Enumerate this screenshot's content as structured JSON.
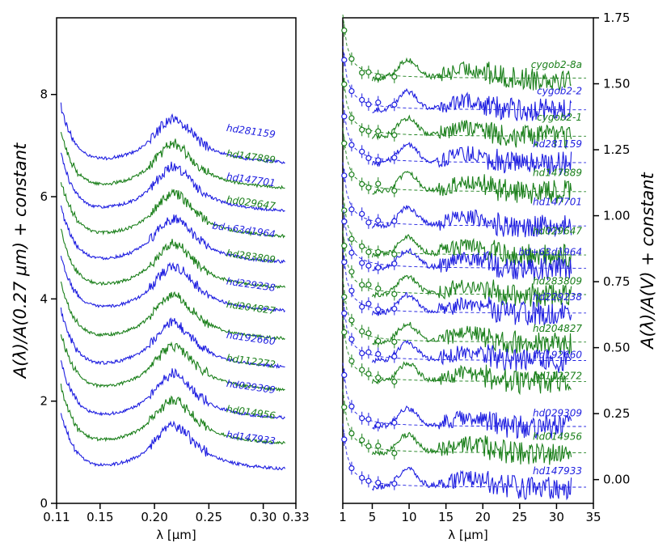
{
  "colors": {
    "blue": "#1f1fe0",
    "green": "#1a7f1a",
    "axis": "#000000"
  },
  "chart_data": [
    {
      "type": "line",
      "panel": "left",
      "xlabel": "λ [μm]",
      "ylabel": "A(λ)/A(0.27 μm) + constant",
      "xlim": [
        0.11,
        0.33
      ],
      "ylim": [
        0,
        9.5
      ],
      "xticks": [
        "0.11",
        "0.15",
        "0.20",
        "0.25",
        "0.30",
        "0.33"
      ],
      "xtick_values": [
        0.11,
        0.15,
        0.2,
        0.25,
        0.3,
        0.33
      ],
      "yticks": [
        "0",
        "2",
        "4",
        "6",
        "8"
      ],
      "ytick_values": [
        0,
        2,
        4,
        6,
        8
      ],
      "series": [
        {
          "name": "hd281159",
          "color": "blue",
          "offset": 6.85,
          "label_y": 7.15
        },
        {
          "name": "hd147889",
          "color": "green",
          "offset": 6.35,
          "label_y": 6.65
        },
        {
          "name": "hd147701",
          "color": "blue",
          "offset": 5.9,
          "label_y": 6.2
        },
        {
          "name": "hd029647",
          "color": "green",
          "offset": 5.4,
          "label_y": 5.75
        },
        {
          "name": "bd+63d1964",
          "color": "blue",
          "offset": 4.9,
          "label_y": 5.2
        },
        {
          "name": "hd283809",
          "color": "green",
          "offset": 4.4,
          "label_y": 4.7
        },
        {
          "name": "hd229238",
          "color": "blue",
          "offset": 3.95,
          "label_y": 4.15
        },
        {
          "name": "hd204827",
          "color": "green",
          "offset": 3.4,
          "label_y": 3.7
        },
        {
          "name": "hd192660",
          "color": "blue",
          "offset": 2.85,
          "label_y": 3.1
        },
        {
          "name": "hd112272",
          "color": "green",
          "offset": 2.4,
          "label_y": 2.65
        },
        {
          "name": "hd029309",
          "color": "blue",
          "offset": 1.85,
          "label_y": 2.15
        },
        {
          "name": "hd014956",
          "color": "green",
          "offset": 1.35,
          "label_y": 1.65
        },
        {
          "name": "hd147933",
          "color": "blue",
          "offset": 0.85,
          "label_y": 1.15
        }
      ]
    },
    {
      "type": "line",
      "panel": "right",
      "xlabel": "λ [μm]",
      "ylabel": "A(λ)/A(V) + constant",
      "xlim": [
        1,
        35
      ],
      "ylim": [
        -0.09,
        1.75
      ],
      "xticks": [
        "1",
        "5",
        "10",
        "15",
        "20",
        "25",
        "30",
        "35"
      ],
      "xtick_values": [
        1,
        5,
        10,
        15,
        20,
        25,
        30,
        35
      ],
      "yticks": [
        "0.00",
        "0.25",
        "0.50",
        "0.75",
        "1.00",
        "1.25",
        "1.50",
        "1.75"
      ],
      "ytick_values": [
        0,
        0.25,
        0.5,
        0.75,
        1.0,
        1.25,
        1.5,
        1.75
      ],
      "series": [
        {
          "name": "cygob2-8a",
          "color": "green",
          "offset": 1.52,
          "label_y": 1.56
        },
        {
          "name": "cygob2-2",
          "color": "blue",
          "offset": 1.4,
          "label_y": 1.46
        },
        {
          "name": "cygob2-1",
          "color": "green",
          "offset": 1.3,
          "label_y": 1.36
        },
        {
          "name": "hd281159",
          "color": "blue",
          "offset": 1.2,
          "label_y": 1.26
        },
        {
          "name": "hd147889",
          "color": "green",
          "offset": 1.09,
          "label_y": 1.15
        },
        {
          "name": "hd147701",
          "color": "blue",
          "offset": 0.96,
          "label_y": 1.04
        },
        {
          "name": "hd029647",
          "color": "green",
          "offset": 0.85,
          "label_y": 0.93
        },
        {
          "name": "bd+63d1964",
          "color": "blue",
          "offset": 0.8,
          "label_y": 0.85
        },
        {
          "name": "hd283809",
          "color": "green",
          "offset": 0.7,
          "label_y": 0.74
        },
        {
          "name": "hd229238",
          "color": "blue",
          "offset": 0.63,
          "label_y": 0.68
        },
        {
          "name": "hd204827",
          "color": "green",
          "offset": 0.52,
          "label_y": 0.56
        },
        {
          "name": "hd192660",
          "color": "blue",
          "offset": 0.45,
          "label_y": 0.46
        },
        {
          "name": "hd112272",
          "color": "green",
          "offset": 0.37,
          "label_y": 0.38
        },
        {
          "name": "hd029309",
          "color": "blue",
          "offset": 0.2,
          "label_y": 0.24
        },
        {
          "name": "hd014956",
          "color": "green",
          "offset": 0.1,
          "label_y": 0.15
        },
        {
          "name": "hd147933",
          "color": "blue",
          "offset": -0.03,
          "label_y": 0.02
        }
      ]
    }
  ]
}
